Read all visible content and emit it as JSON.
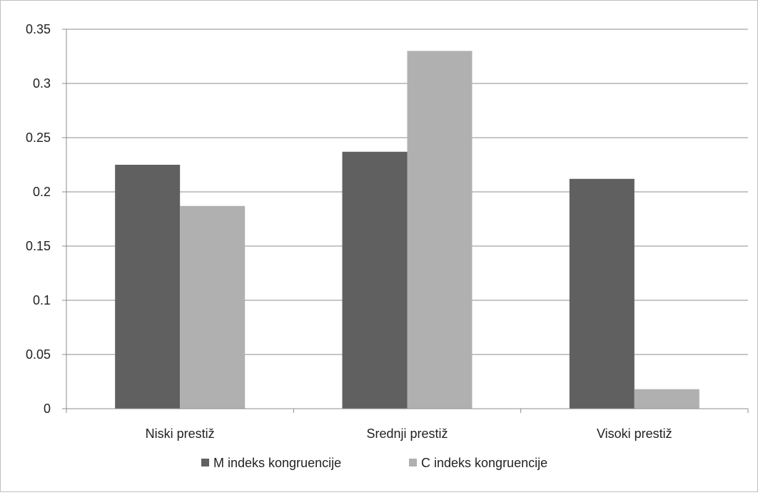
{
  "chart_data": {
    "type": "bar",
    "categories": [
      "Niski prestiž",
      "Srednji prestiž",
      "Visoki prestiž"
    ],
    "series": [
      {
        "name": "M indeks kongruencije",
        "values": [
          0.225,
          0.237,
          0.212
        ],
        "color": "#606060"
      },
      {
        "name": "C indeks kongruencije",
        "values": [
          0.187,
          0.33,
          0.018
        ],
        "color": "#b0b0b0"
      }
    ],
    "yticks": [
      "0",
      "0.05",
      "0.1",
      "0.15",
      "0.2",
      "0.25",
      "0.3",
      "0.35"
    ],
    "ylim": [
      0,
      0.35
    ],
    "grid": true,
    "legend_position": "bottom",
    "title": "",
    "xlabel": "",
    "ylabel": ""
  }
}
